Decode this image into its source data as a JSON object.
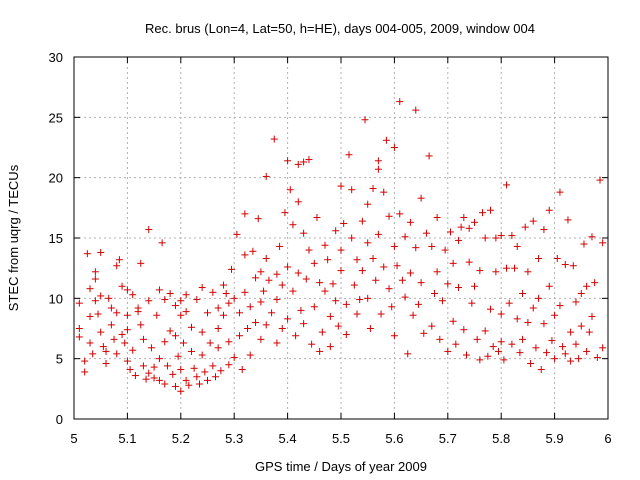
{
  "chart_data": {
    "type": "scatter",
    "title": "Rec. brus (Lon=4, Lat=50, h=HE), days 004-005, 2009, window 004",
    "xlabel": "GPS time / Days of year 2009",
    "ylabel": "STEC from uqrg / TECUs",
    "xlim": [
      5,
      6
    ],
    "ylim": [
      0,
      30
    ],
    "x_ticks": [
      "5",
      "5.1",
      "5.2",
      "5.3",
      "5.4",
      "5.5",
      "5.6",
      "5.7",
      "5.8",
      "5.9",
      "6"
    ],
    "y_ticks": [
      "0",
      "5",
      "10",
      "15",
      "20",
      "25",
      "30"
    ],
    "grid": true,
    "marker": "+",
    "marker_color": "#d40000",
    "points": [
      [
        5.01,
        9.6
      ],
      [
        5.01,
        7.5
      ],
      [
        5.01,
        6.8
      ],
      [
        5.02,
        4.8
      ],
      [
        5.02,
        3.9
      ],
      [
        5.025,
        13.7
      ],
      [
        5.03,
        10.8
      ],
      [
        5.03,
        8.5
      ],
      [
        5.03,
        6.3
      ],
      [
        5.035,
        5.4
      ],
      [
        5.04,
        12.2
      ],
      [
        5.04,
        11.6
      ],
      [
        5.04,
        9.8
      ],
      [
        5.045,
        8.7
      ],
      [
        5.05,
        13.8
      ],
      [
        5.05,
        10.2
      ],
      [
        5.05,
        7.2
      ],
      [
        5.055,
        6.0
      ],
      [
        5.06,
        5.6
      ],
      [
        5.06,
        4.6
      ],
      [
        5.065,
        10.0
      ],
      [
        5.07,
        9.2
      ],
      [
        5.07,
        7.8
      ],
      [
        5.075,
        6.6
      ],
      [
        5.08,
        12.7
      ],
      [
        5.08,
        8.8
      ],
      [
        5.08,
        5.4
      ],
      [
        5.085,
        13.2
      ],
      [
        5.09,
        11.0
      ],
      [
        5.09,
        7.0
      ],
      [
        5.095,
        6.3
      ],
      [
        5.1,
        10.7
      ],
      [
        5.1,
        8.6
      ],
      [
        5.1,
        7.4
      ],
      [
        5.1,
        4.8
      ],
      [
        5.105,
        4.1
      ],
      [
        5.11,
        10.3
      ],
      [
        5.11,
        5.7
      ],
      [
        5.115,
        3.6
      ],
      [
        5.12,
        9.2
      ],
      [
        5.12,
        8.9
      ],
      [
        5.125,
        12.9
      ],
      [
        5.125,
        7.8
      ],
      [
        5.13,
        6.6
      ],
      [
        5.13,
        4.4
      ],
      [
        5.135,
        3.3
      ],
      [
        5.14,
        15.7
      ],
      [
        5.14,
        9.8
      ],
      [
        5.14,
        3.8
      ],
      [
        5.145,
        5.9
      ],
      [
        5.15,
        4.3
      ],
      [
        5.15,
        3.4
      ],
      [
        5.155,
        8.6
      ],
      [
        5.16,
        10.7
      ],
      [
        5.16,
        5.0
      ],
      [
        5.16,
        3.2
      ],
      [
        5.165,
        14.6
      ],
      [
        5.17,
        9.9
      ],
      [
        5.17,
        6.4
      ],
      [
        5.17,
        2.9
      ],
      [
        5.175,
        4.4
      ],
      [
        5.18,
        10.4
      ],
      [
        5.18,
        7.3
      ],
      [
        5.185,
        3.7
      ],
      [
        5.19,
        9.4
      ],
      [
        5.19,
        6.9
      ],
      [
        5.19,
        2.7
      ],
      [
        5.195,
        5.2
      ],
      [
        5.2,
        9.8
      ],
      [
        5.2,
        8.6
      ],
      [
        5.2,
        4.1
      ],
      [
        5.2,
        2.3
      ],
      [
        5.205,
        6.3
      ],
      [
        5.21,
        10.3
      ],
      [
        5.21,
        8.9
      ],
      [
        5.21,
        3.2
      ],
      [
        5.215,
        2.8
      ],
      [
        5.22,
        7.6
      ],
      [
        5.22,
        5.6
      ],
      [
        5.225,
        4.2
      ],
      [
        5.23,
        9.9
      ],
      [
        5.23,
        3.5
      ],
      [
        5.235,
        2.9
      ],
      [
        5.24,
        10.9
      ],
      [
        5.24,
        7.2
      ],
      [
        5.24,
        5.3
      ],
      [
        5.245,
        3.9
      ],
      [
        5.25,
        8.8
      ],
      [
        5.25,
        3.2
      ],
      [
        5.255,
        6.3
      ],
      [
        5.26,
        10.5
      ],
      [
        5.26,
        4.4
      ],
      [
        5.265,
        3.5
      ],
      [
        5.27,
        9.2
      ],
      [
        5.27,
        7.5
      ],
      [
        5.27,
        5.9
      ],
      [
        5.275,
        4.0
      ],
      [
        5.28,
        11.1
      ],
      [
        5.28,
        8.6
      ],
      [
        5.285,
        10.4
      ],
      [
        5.29,
        9.6
      ],
      [
        5.29,
        6.4
      ],
      [
        5.29,
        4.5
      ],
      [
        5.295,
        12.4
      ],
      [
        5.3,
        10.0
      ],
      [
        5.3,
        5.1
      ],
      [
        5.305,
        15.3
      ],
      [
        5.31,
        8.8
      ],
      [
        5.31,
        6.9
      ],
      [
        5.315,
        4.1
      ],
      [
        5.32,
        13.6
      ],
      [
        5.32,
        17.0
      ],
      [
        5.32,
        10.5
      ],
      [
        5.325,
        7.5
      ],
      [
        5.33,
        9.3
      ],
      [
        5.33,
        5.3
      ],
      [
        5.335,
        13.9
      ],
      [
        5.34,
        11.7
      ],
      [
        5.34,
        8.0
      ],
      [
        5.345,
        16.6
      ],
      [
        5.35,
        12.2
      ],
      [
        5.35,
        9.7
      ],
      [
        5.35,
        6.6
      ],
      [
        5.355,
        10.6
      ],
      [
        5.36,
        20.1
      ],
      [
        5.36,
        13.3
      ],
      [
        5.36,
        7.8
      ],
      [
        5.365,
        11.5
      ],
      [
        5.37,
        8.8
      ],
      [
        5.375,
        23.2
      ],
      [
        5.38,
        12.0
      ],
      [
        5.38,
        9.9
      ],
      [
        5.38,
        6.3
      ],
      [
        5.385,
        14.3
      ],
      [
        5.39,
        11.1
      ],
      [
        5.39,
        7.5
      ],
      [
        5.395,
        17.1
      ],
      [
        5.4,
        12.6
      ],
      [
        5.4,
        21.4
      ],
      [
        5.4,
        8.3
      ],
      [
        5.405,
        19.0
      ],
      [
        5.41,
        16.1
      ],
      [
        5.41,
        10.6
      ],
      [
        5.415,
        6.9
      ],
      [
        5.42,
        21.1
      ],
      [
        5.42,
        18.0
      ],
      [
        5.42,
        12.1
      ],
      [
        5.425,
        9.0
      ],
      [
        5.43,
        21.3
      ],
      [
        5.43,
        15.4
      ],
      [
        5.43,
        7.9
      ],
      [
        5.435,
        11.6
      ],
      [
        5.44,
        21.5
      ],
      [
        5.44,
        14.0
      ],
      [
        5.445,
        6.2
      ],
      [
        5.45,
        12.9
      ],
      [
        5.45,
        9.3
      ],
      [
        5.455,
        16.7
      ],
      [
        5.46,
        11.3
      ],
      [
        5.46,
        5.6
      ],
      [
        5.465,
        7.2
      ],
      [
        5.47,
        14.4
      ],
      [
        5.47,
        10.6
      ],
      [
        5.475,
        13.2
      ],
      [
        5.48,
        8.5
      ],
      [
        5.48,
        6.0
      ],
      [
        5.485,
        11.2
      ],
      [
        5.49,
        15.6
      ],
      [
        5.49,
        9.8
      ],
      [
        5.495,
        7.7
      ],
      [
        5.5,
        19.3
      ],
      [
        5.5,
        14.0
      ],
      [
        5.5,
        12.3
      ],
      [
        5.505,
        16.2
      ],
      [
        5.51,
        9.5
      ],
      [
        5.51,
        7.0
      ],
      [
        5.515,
        21.9
      ],
      [
        5.52,
        19.0
      ],
      [
        5.52,
        15.0
      ],
      [
        5.525,
        11.1
      ],
      [
        5.53,
        13.2
      ],
      [
        5.53,
        8.7
      ],
      [
        5.535,
        9.9
      ],
      [
        5.54,
        16.4
      ],
      [
        5.54,
        12.3
      ],
      [
        5.545,
        24.8
      ],
      [
        5.55,
        17.8
      ],
      [
        5.55,
        14.6
      ],
      [
        5.55,
        10.0
      ],
      [
        5.555,
        7.5
      ],
      [
        5.56,
        19.1
      ],
      [
        5.56,
        13.3
      ],
      [
        5.565,
        11.5
      ],
      [
        5.57,
        21.4
      ],
      [
        5.57,
        20.7
      ],
      [
        5.57,
        15.3
      ],
      [
        5.575,
        8.7
      ],
      [
        5.58,
        12.6
      ],
      [
        5.58,
        18.8
      ],
      [
        5.585,
        23.1
      ],
      [
        5.59,
        16.8
      ],
      [
        5.59,
        10.8
      ],
      [
        5.595,
        9.3
      ],
      [
        5.6,
        22.5
      ],
      [
        5.6,
        14.3
      ],
      [
        5.6,
        6.9
      ],
      [
        5.605,
        12.7
      ],
      [
        5.61,
        26.3
      ],
      [
        5.61,
        17.0
      ],
      [
        5.615,
        11.5
      ],
      [
        5.62,
        15.1
      ],
      [
        5.62,
        10.1
      ],
      [
        5.625,
        5.4
      ],
      [
        5.63,
        16.3
      ],
      [
        5.63,
        12.1
      ],
      [
        5.635,
        8.6
      ],
      [
        5.64,
        25.6
      ],
      [
        5.64,
        14.2
      ],
      [
        5.645,
        9.5
      ],
      [
        5.65,
        18.3
      ],
      [
        5.65,
        11.3
      ],
      [
        5.655,
        7.1
      ],
      [
        5.66,
        15.4
      ],
      [
        5.665,
        21.8
      ],
      [
        5.67,
        14.3
      ],
      [
        5.67,
        7.7
      ],
      [
        5.675,
        10.4
      ],
      [
        5.68,
        16.7
      ],
      [
        5.68,
        12.2
      ],
      [
        5.685,
        6.6
      ],
      [
        5.69,
        9.8
      ],
      [
        5.695,
        14.0
      ],
      [
        5.7,
        11.2
      ],
      [
        5.7,
        5.6
      ],
      [
        5.705,
        15.5
      ],
      [
        5.71,
        12.9
      ],
      [
        5.71,
        8.1
      ],
      [
        5.715,
        6.2
      ],
      [
        5.72,
        14.8
      ],
      [
        5.72,
        10.9
      ],
      [
        5.725,
        15.9
      ],
      [
        5.73,
        16.7
      ],
      [
        5.73,
        7.4
      ],
      [
        5.735,
        5.3
      ],
      [
        5.74,
        15.8
      ],
      [
        5.74,
        13.0
      ],
      [
        5.745,
        9.6
      ],
      [
        5.75,
        16.3
      ],
      [
        5.75,
        11.0
      ],
      [
        5.755,
        6.6
      ],
      [
        5.76,
        12.3
      ],
      [
        5.76,
        4.9
      ],
      [
        5.765,
        17.1
      ],
      [
        5.77,
        15.0
      ],
      [
        5.77,
        7.3
      ],
      [
        5.775,
        5.2
      ],
      [
        5.78,
        17.3
      ],
      [
        5.78,
        9.1
      ],
      [
        5.785,
        6.0
      ],
      [
        5.79,
        15.0
      ],
      [
        5.79,
        12.2
      ],
      [
        5.795,
        5.6
      ],
      [
        5.8,
        8.7
      ],
      [
        5.8,
        15.2
      ],
      [
        5.8,
        6.4
      ],
      [
        5.805,
        4.9
      ],
      [
        5.81,
        19.4
      ],
      [
        5.81,
        12.5
      ],
      [
        5.815,
        9.6
      ],
      [
        5.82,
        15.2
      ],
      [
        5.82,
        6.2
      ],
      [
        5.825,
        12.5
      ],
      [
        5.83,
        14.3
      ],
      [
        5.83,
        8.3
      ],
      [
        5.835,
        5.5
      ],
      [
        5.84,
        10.4
      ],
      [
        5.84,
        6.6
      ],
      [
        5.845,
        15.9
      ],
      [
        5.85,
        12.2
      ],
      [
        5.85,
        8.0
      ],
      [
        5.855,
        4.6
      ],
      [
        5.86,
        16.4
      ],
      [
        5.86,
        9.2
      ],
      [
        5.865,
        5.9
      ],
      [
        5.87,
        13.3
      ],
      [
        5.87,
        10.0
      ],
      [
        5.875,
        4.1
      ],
      [
        5.88,
        15.7
      ],
      [
        5.88,
        7.9
      ],
      [
        5.885,
        5.5
      ],
      [
        5.89,
        17.3
      ],
      [
        5.89,
        11.0
      ],
      [
        5.895,
        6.5
      ],
      [
        5.9,
        8.6
      ],
      [
        5.9,
        5.0
      ],
      [
        5.905,
        13.3
      ],
      [
        5.91,
        18.8
      ],
      [
        5.91,
        9.4
      ],
      [
        5.915,
        6.0
      ],
      [
        5.92,
        12.8
      ],
      [
        5.92,
        5.4
      ],
      [
        5.925,
        16.5
      ],
      [
        5.93,
        7.2
      ],
      [
        5.93,
        4.8
      ],
      [
        5.935,
        12.7
      ],
      [
        5.94,
        9.7
      ],
      [
        5.94,
        6.2
      ],
      [
        5.945,
        5.0
      ],
      [
        5.95,
        10.4
      ],
      [
        5.95,
        7.7
      ],
      [
        5.955,
        14.5
      ],
      [
        5.96,
        11.0
      ],
      [
        5.96,
        5.6
      ],
      [
        5.965,
        7.2
      ],
      [
        5.97,
        15.1
      ],
      [
        5.97,
        8.5
      ],
      [
        5.975,
        11.3
      ],
      [
        5.98,
        5.1
      ],
      [
        5.985,
        19.8
      ],
      [
        5.99,
        14.6
      ],
      [
        5.99,
        5.9
      ]
    ]
  }
}
